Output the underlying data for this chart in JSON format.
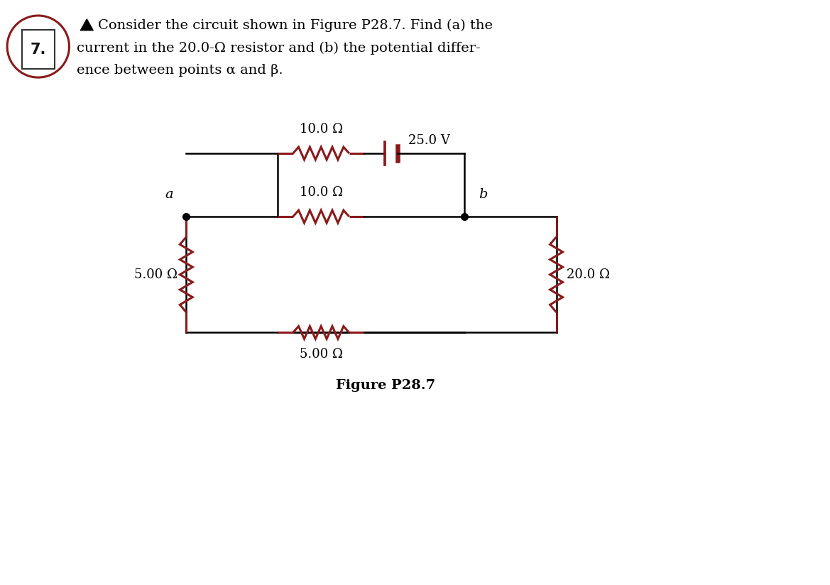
{
  "bg_color": "#ffffff",
  "wire_color": "#000000",
  "resistor_color": "#8B1A1A",
  "text_color": "#000000",
  "node_color": "#000000",
  "figure_caption": "Figure P28.7",
  "label_10ohm_top": "10.0 Ω",
  "label_10ohm_mid": "10.0 Ω",
  "label_5ohm_left": "5.00 Ω",
  "label_5ohm_bot": "5.00 Ω",
  "label_20ohm": "20.0 Ω",
  "label_25V": "25.0 V",
  "label_a": "a",
  "label_b": "b",
  "wire_lw": 1.8,
  "resistor_lw": 2.2,
  "circle_color": "#8B1A1A",
  "problem_number": "7.",
  "triangle_color": "#000000"
}
